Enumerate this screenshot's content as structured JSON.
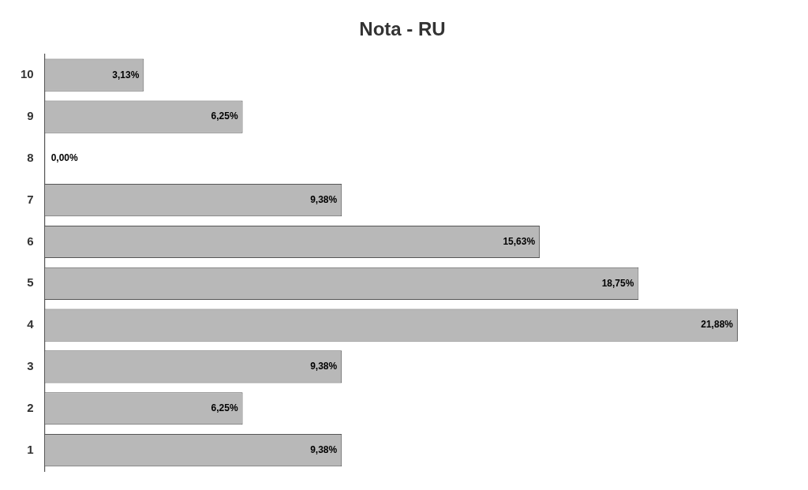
{
  "chart_data": {
    "type": "bar",
    "orientation": "horizontal",
    "title": "Nota - RU",
    "categories": [
      10,
      9,
      8,
      7,
      6,
      5,
      4,
      3,
      2,
      1
    ],
    "values": [
      3.13,
      6.25,
      0.0,
      9.38,
      15.63,
      18.75,
      21.88,
      9.38,
      6.25,
      9.38
    ],
    "value_labels": [
      "3,13%",
      "6,25%",
      "0,00%",
      "9,38%",
      "15,63%",
      "18,75%",
      "21,88%",
      "9,38%",
      "6,25%",
      "9,38%"
    ],
    "data_labels": true,
    "color": "#b8b8b8",
    "xlim": [
      0,
      23.5
    ],
    "tick_labels": "y",
    "grid": false
  }
}
